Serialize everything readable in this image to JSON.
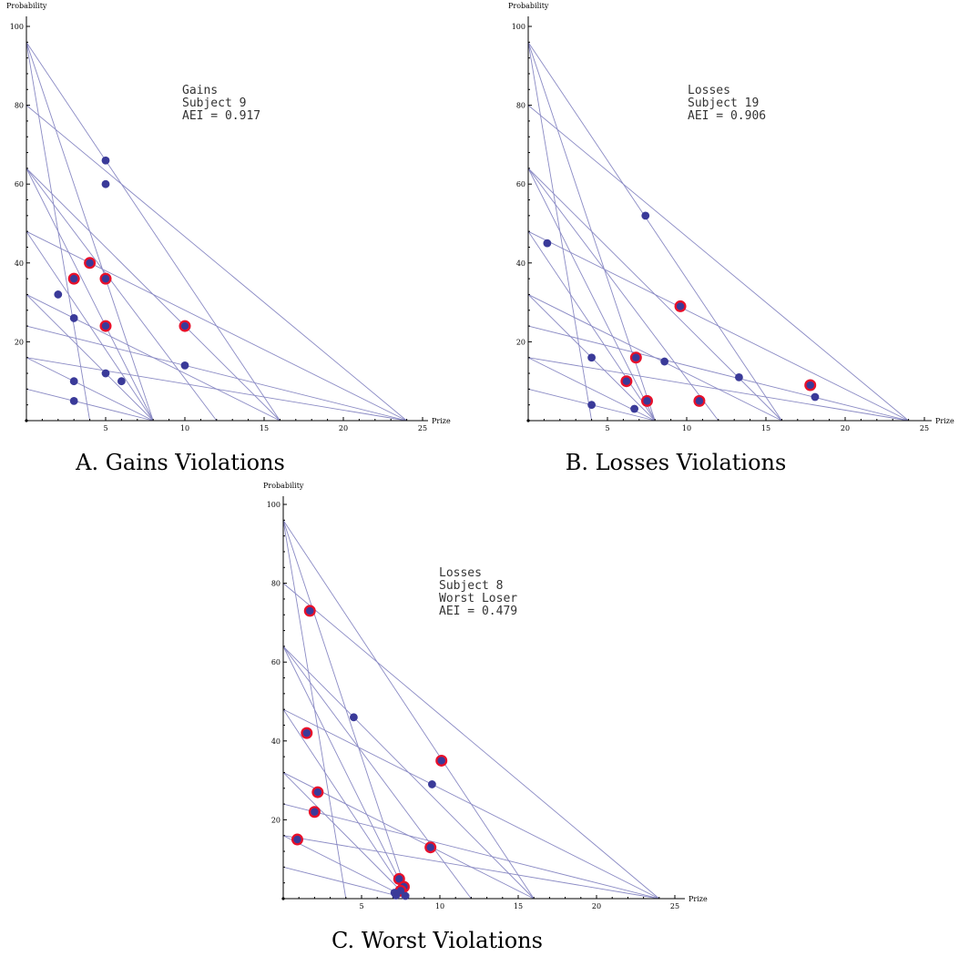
{
  "chart_data": [
    {
      "type": "scatter",
      "caption": "A. Gains Violations",
      "xlabel": "Prize",
      "ylabel": "Probability",
      "xlim": [
        0,
        25
      ],
      "ylim": [
        0,
        100
      ],
      "xticks": [
        5,
        10,
        15,
        20,
        25
      ],
      "yticks": [
        20,
        40,
        60,
        80,
        100
      ],
      "annotation": [
        "Gains",
        "Subject 9",
        "AEI = 0.917"
      ],
      "budget_lines": [
        {
          "x_intercept": 4,
          "y_intercept": 96
        },
        {
          "x_intercept": 8,
          "y_intercept": 96
        },
        {
          "x_intercept": 16,
          "y_intercept": 96
        },
        {
          "x_intercept": 24,
          "y_intercept": 80
        },
        {
          "x_intercept": 8,
          "y_intercept": 64
        },
        {
          "x_intercept": 12,
          "y_intercept": 64
        },
        {
          "x_intercept": 16,
          "y_intercept": 64
        },
        {
          "x_intercept": 8,
          "y_intercept": 48
        },
        {
          "x_intercept": 24,
          "y_intercept": 48
        },
        {
          "x_intercept": 8,
          "y_intercept": 32
        },
        {
          "x_intercept": 16,
          "y_intercept": 32
        },
        {
          "x_intercept": 24,
          "y_intercept": 24
        },
        {
          "x_intercept": 8,
          "y_intercept": 16
        },
        {
          "x_intercept": 24,
          "y_intercept": 16
        },
        {
          "x_intercept": 8,
          "y_intercept": 8
        }
      ],
      "points": [
        {
          "x": 5,
          "y": 66,
          "violation": false
        },
        {
          "x": 5,
          "y": 60,
          "violation": false
        },
        {
          "x": 4,
          "y": 40,
          "violation": true
        },
        {
          "x": 3,
          "y": 36,
          "violation": true
        },
        {
          "x": 5,
          "y": 36,
          "violation": true
        },
        {
          "x": 2,
          "y": 32,
          "violation": false
        },
        {
          "x": 3,
          "y": 26,
          "violation": false
        },
        {
          "x": 5,
          "y": 24,
          "violation": true
        },
        {
          "x": 10,
          "y": 24,
          "violation": true
        },
        {
          "x": 10,
          "y": 14,
          "violation": false
        },
        {
          "x": 5,
          "y": 12,
          "violation": false
        },
        {
          "x": 6,
          "y": 10,
          "violation": false
        },
        {
          "x": 3,
          "y": 10,
          "violation": false
        },
        {
          "x": 3,
          "y": 5,
          "violation": false
        }
      ],
      "colors": {
        "point": "#3a3a99",
        "violation_ring": "#e8102a",
        "line": "#8a8ac4"
      }
    },
    {
      "type": "scatter",
      "caption": "B. Losses Violations",
      "xlabel": "Prize",
      "ylabel": "Probability",
      "xlim": [
        0,
        25
      ],
      "ylim": [
        0,
        100
      ],
      "xticks": [
        5,
        10,
        15,
        20,
        25
      ],
      "yticks": [
        20,
        40,
        60,
        80,
        100
      ],
      "annotation": [
        "Losses",
        "Subject 19",
        "AEI = 0.906"
      ],
      "budget_lines": [
        {
          "x_intercept": 4,
          "y_intercept": 96
        },
        {
          "x_intercept": 8,
          "y_intercept": 96
        },
        {
          "x_intercept": 16,
          "y_intercept": 96
        },
        {
          "x_intercept": 24,
          "y_intercept": 80
        },
        {
          "x_intercept": 8,
          "y_intercept": 64
        },
        {
          "x_intercept": 12,
          "y_intercept": 64
        },
        {
          "x_intercept": 16,
          "y_intercept": 64
        },
        {
          "x_intercept": 8,
          "y_intercept": 48
        },
        {
          "x_intercept": 24,
          "y_intercept": 48
        },
        {
          "x_intercept": 8,
          "y_intercept": 32
        },
        {
          "x_intercept": 16,
          "y_intercept": 32
        },
        {
          "x_intercept": 24,
          "y_intercept": 24
        },
        {
          "x_intercept": 8,
          "y_intercept": 16
        },
        {
          "x_intercept": 24,
          "y_intercept": 16
        },
        {
          "x_intercept": 8,
          "y_intercept": 8
        }
      ],
      "points": [
        {
          "x": 7.4,
          "y": 52,
          "violation": false
        },
        {
          "x": 1.2,
          "y": 45,
          "violation": false
        },
        {
          "x": 9.6,
          "y": 29,
          "violation": true
        },
        {
          "x": 4,
          "y": 16,
          "violation": false
        },
        {
          "x": 6.8,
          "y": 16,
          "violation": true
        },
        {
          "x": 8.6,
          "y": 15,
          "violation": false
        },
        {
          "x": 13.3,
          "y": 11,
          "violation": false
        },
        {
          "x": 6.2,
          "y": 10,
          "violation": true
        },
        {
          "x": 17.8,
          "y": 9,
          "violation": true
        },
        {
          "x": 18.1,
          "y": 6,
          "violation": false
        },
        {
          "x": 7.5,
          "y": 5,
          "violation": true
        },
        {
          "x": 10.8,
          "y": 5,
          "violation": true
        },
        {
          "x": 4,
          "y": 4,
          "violation": false
        },
        {
          "x": 6.7,
          "y": 3,
          "violation": false
        }
      ],
      "colors": {
        "point": "#3a3a99",
        "violation_ring": "#e8102a",
        "line": "#8a8ac4"
      }
    },
    {
      "type": "scatter",
      "caption": "C. Worst Violations",
      "xlabel": "Prize",
      "ylabel": "Probability",
      "xlim": [
        0,
        25
      ],
      "ylim": [
        0,
        100
      ],
      "xticks": [
        5,
        10,
        15,
        20,
        25
      ],
      "yticks": [
        20,
        40,
        60,
        80,
        100
      ],
      "annotation": [
        "Losses",
        "Subject 8",
        "Worst Loser",
        "AEI = 0.479"
      ],
      "budget_lines": [
        {
          "x_intercept": 4,
          "y_intercept": 96
        },
        {
          "x_intercept": 8,
          "y_intercept": 96
        },
        {
          "x_intercept": 16,
          "y_intercept": 96
        },
        {
          "x_intercept": 24,
          "y_intercept": 80
        },
        {
          "x_intercept": 8,
          "y_intercept": 64
        },
        {
          "x_intercept": 12,
          "y_intercept": 64
        },
        {
          "x_intercept": 16,
          "y_intercept": 64
        },
        {
          "x_intercept": 8,
          "y_intercept": 48
        },
        {
          "x_intercept": 24,
          "y_intercept": 48
        },
        {
          "x_intercept": 8,
          "y_intercept": 32
        },
        {
          "x_intercept": 16,
          "y_intercept": 32
        },
        {
          "x_intercept": 24,
          "y_intercept": 24
        },
        {
          "x_intercept": 8,
          "y_intercept": 16
        },
        {
          "x_intercept": 24,
          "y_intercept": 16
        },
        {
          "x_intercept": 8,
          "y_intercept": 8
        }
      ],
      "points": [
        {
          "x": 1.7,
          "y": 73,
          "violation": true
        },
        {
          "x": 4.5,
          "y": 46,
          "violation": false
        },
        {
          "x": 1.5,
          "y": 42,
          "violation": true
        },
        {
          "x": 10.1,
          "y": 35,
          "violation": true
        },
        {
          "x": 9.5,
          "y": 29,
          "violation": false
        },
        {
          "x": 2.2,
          "y": 27,
          "violation": true
        },
        {
          "x": 2,
          "y": 22,
          "violation": true
        },
        {
          "x": 0.9,
          "y": 15,
          "violation": true
        },
        {
          "x": 9.4,
          "y": 13,
          "violation": true
        },
        {
          "x": 7.4,
          "y": 5,
          "violation": true
        },
        {
          "x": 7.7,
          "y": 3,
          "violation": true
        },
        {
          "x": 7.5,
          "y": 2,
          "violation": true
        },
        {
          "x": 7.1,
          "y": 1.5,
          "violation": false
        },
        {
          "x": 7.2,
          "y": 0.8,
          "violation": false
        },
        {
          "x": 7.8,
          "y": 0.7,
          "violation": false
        }
      ],
      "colors": {
        "point": "#3a3a99",
        "violation_ring": "#e8102a",
        "line": "#8a8ac4"
      }
    }
  ]
}
